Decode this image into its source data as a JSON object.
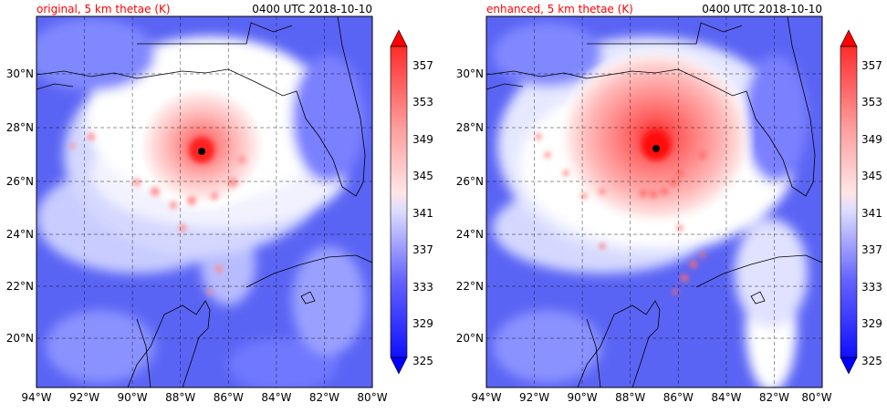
{
  "panels": [
    {
      "title_left": "original, 5 km thetae (K)",
      "title_right": "0400 UTC 2018-10-10",
      "storm_center": {
        "lon": -87.1,
        "lat": 27.1
      },
      "warm_core_extent_deg": 4.8
    },
    {
      "title_left": "enhanced, 5 km thetae (K)",
      "title_right": "0400 UTC 2018-10-10",
      "storm_center": {
        "lon": -86.9,
        "lat": 27.2
      },
      "warm_core_extent_deg": 6.2
    }
  ],
  "map": {
    "lon_ticks": [
      -94,
      -92,
      -90,
      -88,
      -86,
      -84,
      -82,
      -80
    ],
    "lat_ticks": [
      20,
      22,
      24,
      26,
      28,
      30
    ],
    "lon_range": [
      -94,
      -80
    ],
    "lat_range": [
      18.2,
      32
    ],
    "lon_labels": [
      "94°W",
      "92°W",
      "90°W",
      "88°W",
      "86°W",
      "84°W",
      "82°W",
      "80°W"
    ],
    "lat_labels": [
      "20°N",
      "22°N",
      "24°N",
      "26°N",
      "28°N",
      "30°N"
    ],
    "gridlines": "dashed"
  },
  "colorbar": {
    "range": [
      325,
      359
    ],
    "tick_values": [
      325,
      329,
      333,
      337,
      341,
      345,
      349,
      353,
      357
    ],
    "tick_labels": [
      "325",
      "329",
      "333",
      "337",
      "341",
      "345",
      "349",
      "353",
      "357"
    ],
    "colors_low_to_high": [
      "#1010ff",
      "#3030ff",
      "#4848ff",
      "#6464ff",
      "#8080ff",
      "#9a9aff",
      "#b4b4ff",
      "#cacaff",
      "#dcdcff",
      "#eeeeff",
      "#ffe6e6",
      "#ffcccc",
      "#ffb0b0",
      "#ff9898",
      "#ff8080",
      "#ff6464",
      "#ff4848",
      "#ff2c2c"
    ],
    "extend": "both",
    "under_color": "#0000ff",
    "over_color": "#ff0000"
  },
  "colors": {
    "title_left": "#ff0000",
    "background_field": "#5a64f4",
    "coastline": "#000000",
    "storm_marker": "#000000"
  }
}
